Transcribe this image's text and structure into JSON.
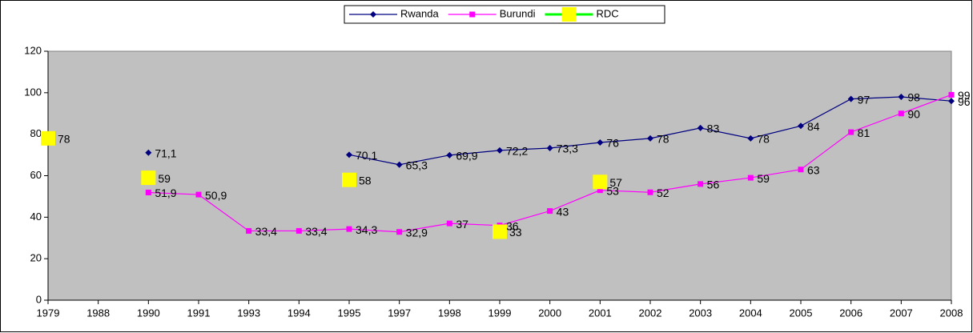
{
  "chart_data": {
    "type": "line",
    "categories": [
      "1979",
      "1988",
      "1990",
      "1991",
      "1993",
      "1994",
      "1995",
      "1997",
      "1998",
      "1999",
      "2000",
      "2001",
      "2002",
      "2003",
      "2004",
      "2005",
      "2006",
      "2007",
      "2008"
    ],
    "series": [
      {
        "name": "Rwanda",
        "color": "#000080",
        "line_color": "#000080",
        "marker": "diamond",
        "values": [
          null,
          null,
          71.1,
          null,
          null,
          null,
          70.1,
          65.3,
          69.9,
          72.2,
          73.3,
          76,
          78,
          83,
          78,
          84,
          97,
          98,
          96
        ],
        "value_labels": [
          null,
          null,
          "71,1",
          null,
          null,
          null,
          "70,1",
          "65,3",
          "69,9",
          "72,2",
          "73,3",
          "76",
          "78",
          "83",
          "78",
          "84",
          "97",
          "98",
          "96"
        ]
      },
      {
        "name": "Burundi",
        "color": "#ff00ff",
        "line_color": "#ff00ff",
        "marker": "square",
        "values": [
          null,
          null,
          51.9,
          50.9,
          33.4,
          33.4,
          34.3,
          32.9,
          37,
          36,
          43,
          53,
          52,
          56,
          59,
          63,
          81,
          90,
          99
        ],
        "value_labels": [
          null,
          null,
          "51,9",
          "50,9",
          "33,4",
          "33,4",
          "34,3",
          "32,9",
          "37",
          "36",
          "43",
          "53",
          "52",
          "56",
          "59",
          "63",
          "81",
          "90",
          "99"
        ]
      },
      {
        "name": "RDC",
        "color": "#ffff00",
        "line_color": "#00ff00",
        "marker": "big-square",
        "values": [
          78,
          null,
          59,
          null,
          null,
          null,
          58,
          null,
          null,
          33,
          null,
          57,
          null,
          null,
          null,
          null,
          null,
          null,
          null
        ],
        "value_labels": [
          "78",
          null,
          "59",
          null,
          null,
          null,
          "58",
          null,
          null,
          "33",
          null,
          "57",
          null,
          null,
          null,
          null,
          null,
          null,
          null
        ]
      }
    ],
    "ylim": [
      0,
      120
    ],
    "yticks": [
      0,
      20,
      40,
      60,
      80,
      100,
      120
    ],
    "plot_background": "#c0c0c0",
    "legend": "top"
  }
}
